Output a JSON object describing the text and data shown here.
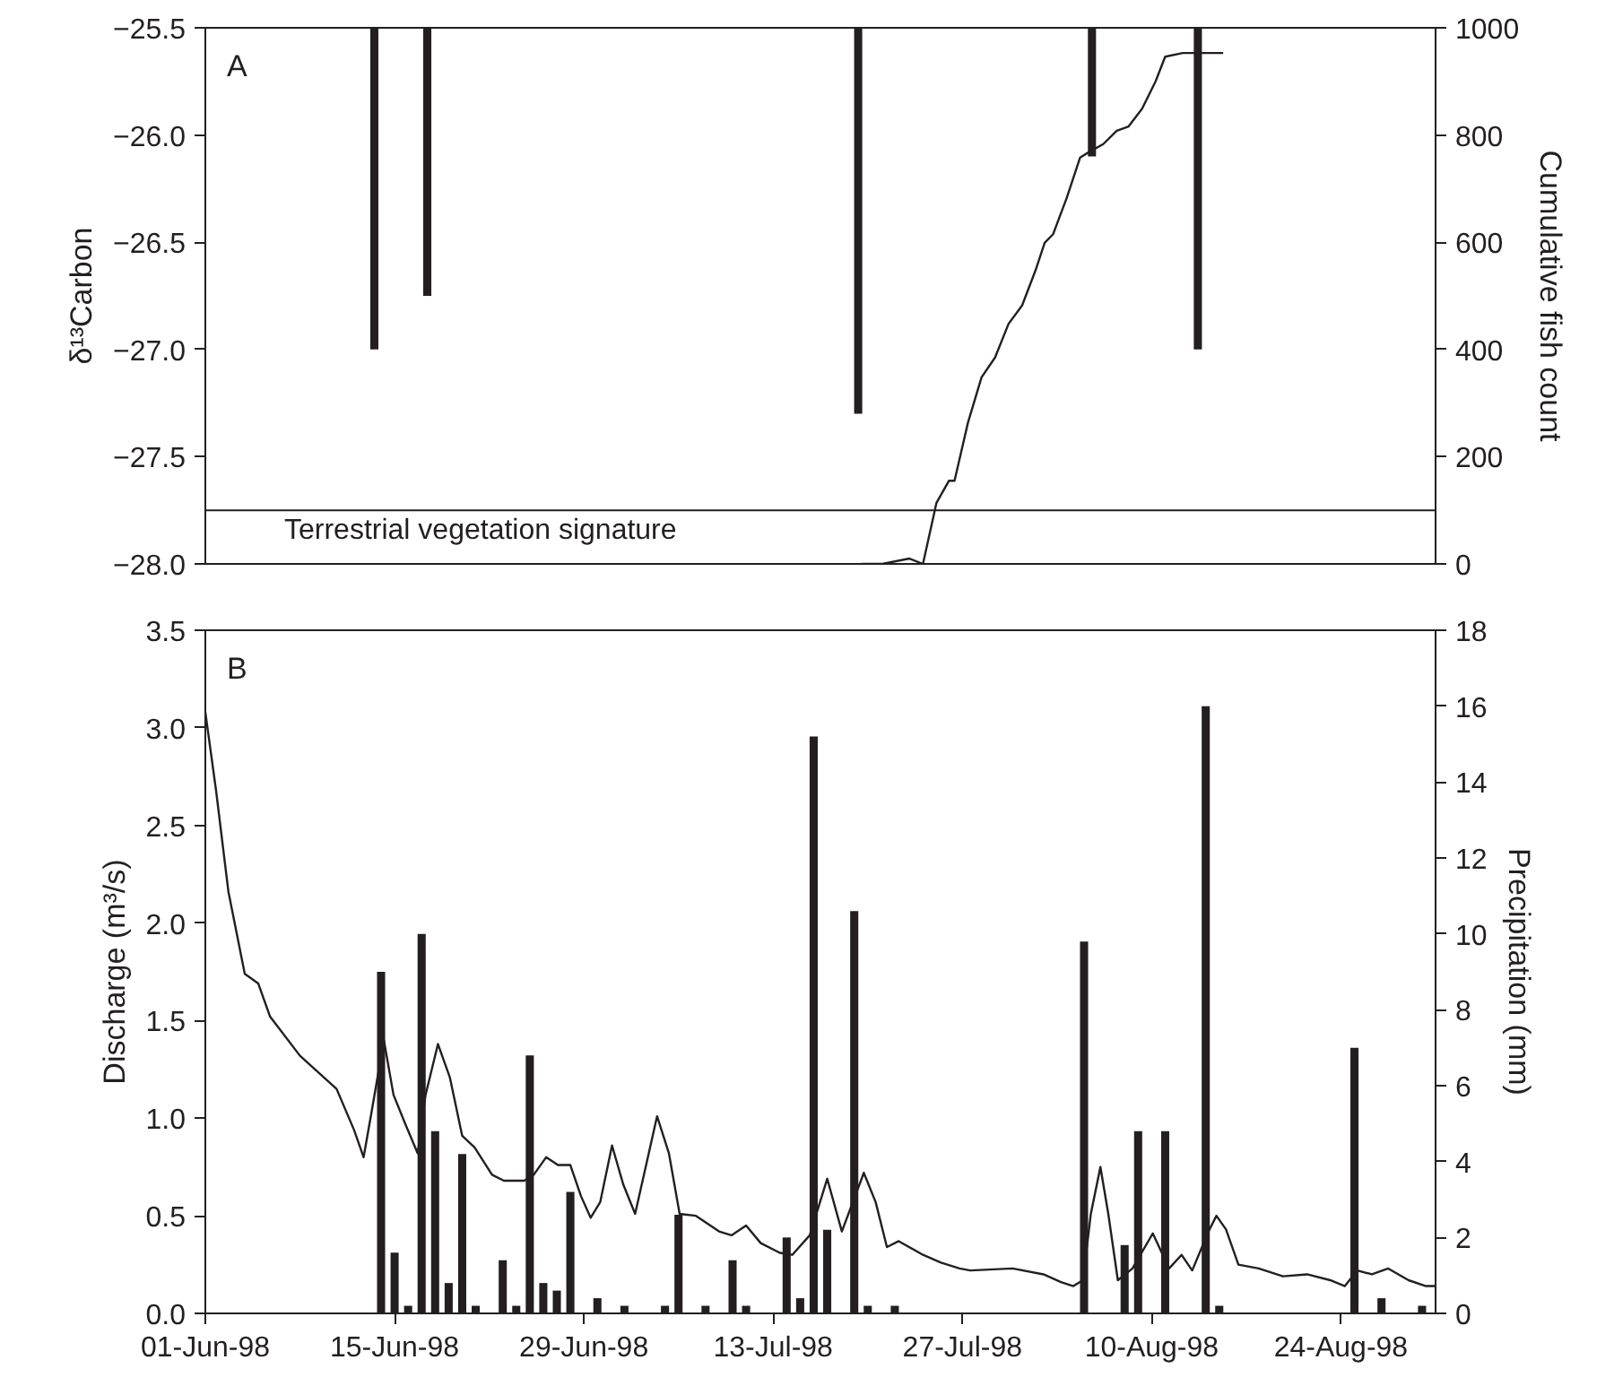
{
  "chart_data": [
    {
      "type": "bar",
      "ylabel": "δ¹³Carbon",
      "y2label": "Cumulative fish count",
      "annotations": [
        "A"
      ],
      "xlim": [
        "1998-06-01",
        "1998-08-31"
      ],
      "ylim": [
        -28,
        -25.5
      ],
      "yticks": [
        {
          "value": -28,
          "label": "−28.0"
        },
        {
          "value": -27.5,
          "label": "−27.5"
        },
        {
          "value": -27,
          "label": "−27.0"
        },
        {
          "value": -26.5,
          "label": "−26.5"
        },
        {
          "value": -26,
          "label": "−26.0"
        },
        {
          "value": -25.5,
          "label": "−25.5"
        }
      ],
      "y2lim": [
        0,
        1000
      ],
      "y2ticks": [
        0,
        200,
        400,
        600,
        800,
        1000
      ],
      "tick_labels": "y",
      "ref_lines": [
        {
          "axis": "y",
          "value": -27.75,
          "label": "Terrestrial vegetation signature",
          "color": "#231f20"
        }
      ],
      "series": [
        {
          "color": "#231f20",
          "x": [
            "1998-06-13T12:00",
            "1998-06-17T10:00",
            "1998-07-19T07:00",
            "1998-08-05T14:00",
            "1998-08-13T10:00"
          ],
          "values": [
            -27.0,
            -26.75,
            -27.3,
            -26.1,
            -27.0
          ]
        },
        {
          "type": "line",
          "axis": "y2",
          "color": "#231f20",
          "x": [
            "1998-07-19T12:00",
            "1998-07-21T02:00",
            "1998-07-23T02:00",
            "1998-07-24T02:00",
            "1998-07-25T02:00",
            "1998-07-26T00:00",
            "1998-07-26T10:00",
            "1998-07-27T10:00",
            "1998-07-28T10:00",
            "1998-07-29T10:00",
            "1998-07-30T10:00",
            "1998-07-31T10:00",
            "1998-08-01T10:00",
            "1998-08-02T02:00",
            "1998-08-02T17:00",
            "1998-08-03T17:00",
            "1998-08-04T17:00",
            "1998-08-05T10:00",
            "1998-08-06T10:00",
            "1998-08-07T10:00",
            "1998-08-08T07:00",
            "1998-08-09T07:00",
            "1998-08-10T07:00",
            "1998-08-11T00:00",
            "1998-08-12T07:00",
            "1998-08-15T07:00"
          ],
          "values": [
            0,
            0,
            10,
            0,
            114,
            155,
            155,
            264,
            348,
            385,
            448,
            482,
            548,
            599,
            615,
            682,
            758,
            769,
            783,
            808,
            816,
            849,
            900,
            946,
            953,
            953
          ]
        }
      ]
    },
    {
      "type": "line",
      "ylabel": "Discharge (m³/s)",
      "y2label": "Precipitation (mm)",
      "annotations": [
        "B"
      ],
      "xlim": [
        "1998-06-01",
        "1998-08-31"
      ],
      "xticks": [
        {
          "value": "1998-06-01",
          "label": "01-Jun-98"
        },
        {
          "value": "1998-06-15",
          "label": "15-Jun-98"
        },
        {
          "value": "1998-06-29",
          "label": "29-Jun-98"
        },
        {
          "value": "1998-07-13",
          "label": "13-Jul-98"
        },
        {
          "value": "1998-07-27",
          "label": "27-Jul-98"
        },
        {
          "value": "1998-08-10",
          "label": "10-Aug-98"
        },
        {
          "value": "1998-08-24",
          "label": "24-Aug-98"
        }
      ],
      "ylim": [
        0,
        3.5
      ],
      "yticks": [
        {
          "value": 0,
          "label": "0.0"
        },
        {
          "value": 0.5,
          "label": "0.5"
        },
        {
          "value": 1,
          "label": "1.0"
        },
        {
          "value": 1.5,
          "label": "1.5"
        },
        {
          "value": 2,
          "label": "2.0"
        },
        {
          "value": 2.5,
          "label": "2.5"
        },
        {
          "value": 3,
          "label": "3.0"
        },
        {
          "value": 3.5,
          "label": "3.5"
        }
      ],
      "y2lim": [
        0,
        18
      ],
      "y2ticks": [
        0,
        2,
        4,
        6,
        8,
        10,
        12,
        14,
        16,
        18
      ],
      "series": [
        {
          "color": "#231f20",
          "x": [
            "1998-06-01T00:00",
            "1998-06-01T19:00",
            "1998-06-02T17:00",
            "1998-06-03T22:00",
            "1998-06-04T22:00",
            "1998-06-05T19:00",
            "1998-06-08T00:00",
            "1998-06-10T17:00",
            "1998-06-12T00:00",
            "1998-06-12T17:00",
            "1998-06-13T07:00",
            "1998-06-14T05:00",
            "1998-06-14T22:00",
            "1998-06-15T19:00",
            "1998-06-16T17:00",
            "1998-06-17T07:00",
            "1998-06-18T05:00",
            "1998-06-19T02:00",
            "1998-06-20T00:00",
            "1998-06-20T22:00",
            "1998-06-22T05:00",
            "1998-06-23T02:00",
            "1998-06-24T14:00",
            "1998-06-25T07:00",
            "1998-06-26T05:00",
            "1998-06-27T02:00",
            "1998-06-28T00:00",
            "1998-06-28T19:00",
            "1998-06-29T12:00",
            "1998-06-30T05:00",
            "1998-07-01T02:00",
            "1998-07-01T22:00",
            "1998-07-02T19:00",
            "1998-07-04T10:00",
            "1998-07-05T07:00",
            "1998-07-06T02:00",
            "1998-07-07T07:00",
            "1998-07-09T00:00",
            "1998-07-09T22:00",
            "1998-07-11T00:00",
            "1998-07-12T02:00",
            "1998-07-13T12:00",
            "1998-07-14T10:00",
            "1998-07-15T17:00",
            "1998-07-17T00:00",
            "1998-07-18T02:00",
            "1998-07-19T17:00",
            "1998-07-20T14:00",
            "1998-07-21T10:00",
            "1998-07-22T07:00",
            "1998-07-24T02:00",
            "1998-07-25T10:00",
            "1998-07-26T19:00",
            "1998-07-27T14:00",
            "1998-07-30T17:00",
            "1998-08-02T00:00",
            "1998-08-03T07:00",
            "1998-08-04T05:00",
            "1998-08-04T22:00",
            "1998-08-05T12:00",
            "1998-08-06T05:00",
            "1998-08-06T19:00",
            "1998-08-07T12:00",
            "1998-08-08T14:00",
            "1998-08-10T02:00",
            "1998-08-11T07:00",
            "1998-08-12T05:00",
            "1998-08-13T00:00",
            "1998-08-14T05:00",
            "1998-08-14T19:00",
            "1998-08-15T12:00",
            "1998-08-16T10:00",
            "1998-08-17T22:00",
            "1998-08-19T17:00",
            "1998-08-21T12:00",
            "1998-08-23T05:00",
            "1998-08-24T07:00",
            "1998-08-25T05:00",
            "1998-08-26T07:00",
            "1998-08-27T12:00",
            "1998-08-29T00:00",
            "1998-08-30T07:00",
            "1998-08-31T00:00"
          ],
          "values": [
            3.08,
            2.68,
            2.16,
            1.74,
            1.69,
            1.52,
            1.32,
            1.15,
            0.94,
            0.8,
            1.03,
            1.4,
            1.12,
            0.97,
            0.82,
            1.12,
            1.38,
            1.21,
            0.91,
            0.85,
            0.71,
            0.68,
            0.68,
            0.71,
            0.8,
            0.76,
            0.76,
            0.6,
            0.49,
            0.57,
            0.86,
            0.66,
            0.51,
            1.01,
            0.82,
            0.51,
            0.5,
            0.42,
            0.4,
            0.45,
            0.36,
            0.31,
            0.3,
            0.4,
            0.69,
            0.42,
            0.72,
            0.57,
            0.34,
            0.37,
            0.3,
            0.26,
            0.23,
            0.22,
            0.23,
            0.2,
            0.16,
            0.14,
            0.17,
            0.51,
            0.75,
            0.51,
            0.17,
            0.23,
            0.41,
            0.23,
            0.3,
            0.22,
            0.42,
            0.5,
            0.43,
            0.25,
            0.23,
            0.19,
            0.2,
            0.17,
            0.14,
            0.22,
            0.2,
            0.23,
            0.17,
            0.14,
            0.14
          ]
        },
        {
          "type": "bar",
          "axis": "y2",
          "color": "#231f20",
          "x": [
            "1998-06-14",
            "1998-06-15",
            "1998-06-16",
            "1998-06-17",
            "1998-06-18",
            "1998-06-19",
            "1998-06-20",
            "1998-06-21",
            "1998-06-23",
            "1998-06-24",
            "1998-06-25",
            "1998-06-26",
            "1998-06-27",
            "1998-06-28",
            "1998-06-30",
            "1998-07-02",
            "1998-07-05",
            "1998-07-06",
            "1998-07-08",
            "1998-07-10",
            "1998-07-11",
            "1998-07-14",
            "1998-07-15",
            "1998-07-16",
            "1998-07-17",
            "1998-07-19",
            "1998-07-20",
            "1998-07-22",
            "1998-08-05",
            "1998-08-08",
            "1998-08-09",
            "1998-08-11",
            "1998-08-14",
            "1998-08-15",
            "1998-08-25",
            "1998-08-27",
            "1998-08-30"
          ],
          "values": [
            9.0,
            1.6,
            0.2,
            10.0,
            4.8,
            0.8,
            4.2,
            0.2,
            1.4,
            0.2,
            6.8,
            0.8,
            0.6,
            3.2,
            0.4,
            0.2,
            0.2,
            2.6,
            0.2,
            1.4,
            0.2,
            2.0,
            0.4,
            15.2,
            2.2,
            10.6,
            0.2,
            0.2,
            9.8,
            1.8,
            4.8,
            4.8,
            16.0,
            0.2,
            7.0,
            0.4,
            0.2
          ]
        }
      ]
    }
  ]
}
